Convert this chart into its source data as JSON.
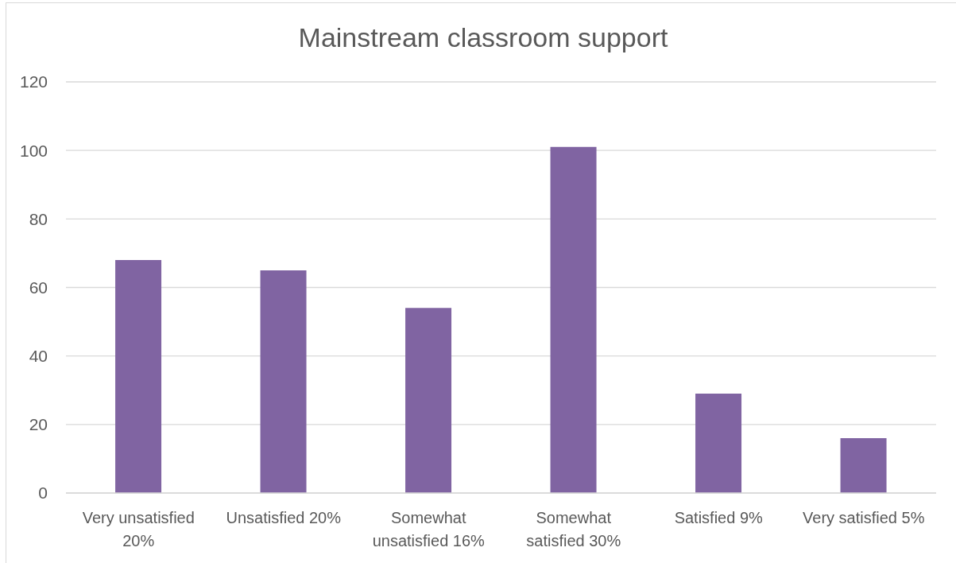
{
  "chart_data": {
    "type": "bar",
    "title": "Mainstream classroom support",
    "categories": [
      "Very unsatisfied 20%",
      "Unsatisfied 20%",
      "Somewhat unsatisfied 16%",
      "Somewhat satisfied 30%",
      "Satisfied 9%",
      "Very satisfied 5%"
    ],
    "values": [
      68,
      65,
      54,
      101,
      29,
      16
    ],
    "color": "#8064a2",
    "ylim": [
      0,
      120
    ],
    "yticks": [
      0,
      20,
      40,
      60,
      80,
      100,
      120
    ],
    "grid": "y"
  }
}
